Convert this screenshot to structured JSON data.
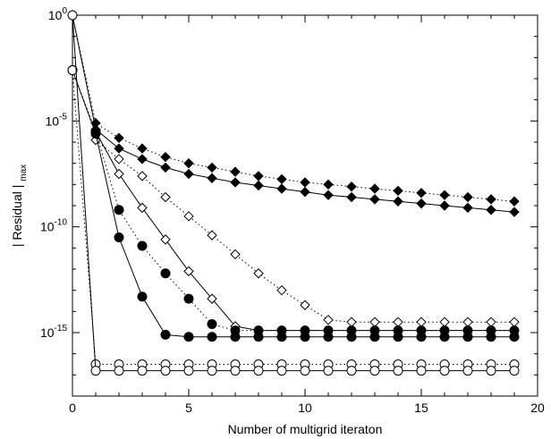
{
  "chart_data": {
    "type": "line",
    "title": "",
    "xlabel": "Number of multigrid iteraton",
    "ylabel": "| Residual |",
    "ylabel_sub": "max",
    "xlim": [
      0,
      20
    ],
    "ylim_log10": [
      -18,
      0
    ],
    "yscale": "log",
    "grid": false,
    "legend": "none",
    "x_ticks": [
      {
        "value": 0,
        "label": "0"
      },
      {
        "value": 5,
        "label": "5"
      },
      {
        "value": 10,
        "label": "10"
      },
      {
        "value": 15,
        "label": "15"
      },
      {
        "value": 20,
        "label": "20"
      }
    ],
    "y_ticks": [
      {
        "exp": 0,
        "base": "10",
        "sup": "0"
      },
      {
        "exp": -5,
        "base": "10",
        "sup": "-5"
      },
      {
        "exp": -10,
        "base": "10",
        "sup": "-10"
      },
      {
        "exp": -15,
        "base": "10",
        "sup": "-15"
      }
    ],
    "series": [
      {
        "marker": "diamond-filled",
        "line": "dotted",
        "x": [
          0,
          1,
          2,
          3,
          4,
          5,
          6,
          7,
          8,
          9,
          10,
          11,
          12,
          13,
          14,
          15,
          16,
          17,
          18,
          19
        ],
        "y_log10": [
          0,
          -5.1,
          -5.8,
          -6.3,
          -6.7,
          -7.0,
          -7.2,
          -7.4,
          -7.6,
          -7.75,
          -7.9,
          -8.0,
          -8.1,
          -8.2,
          -8.3,
          -8.4,
          -8.5,
          -8.6,
          -8.7,
          -8.8
        ]
      },
      {
        "marker": "diamond-filled",
        "line": "solid",
        "x": [
          0,
          1,
          2,
          3,
          4,
          5,
          6,
          7,
          8,
          9,
          10,
          11,
          12,
          13,
          14,
          15,
          16,
          17,
          18,
          19
        ],
        "y_log10": [
          0,
          -5.4,
          -6.3,
          -6.8,
          -7.2,
          -7.5,
          -7.7,
          -7.9,
          -8.05,
          -8.2,
          -8.35,
          -8.5,
          -8.6,
          -8.7,
          -8.8,
          -8.9,
          -9.0,
          -9.1,
          -9.2,
          -9.3
        ]
      },
      {
        "marker": "diamond-open",
        "line": "dotted",
        "x": [
          1,
          2,
          3,
          4,
          5,
          6,
          7,
          8,
          9,
          10,
          11,
          12,
          13,
          14,
          15,
          16,
          17,
          18,
          19
        ],
        "y_log10": [
          -5.9,
          -6.8,
          -7.6,
          -8.6,
          -9.5,
          -10.4,
          -11.3,
          -12.2,
          -13.0,
          -13.7,
          -14.4,
          -14.5,
          -14.5,
          -14.5,
          -14.5,
          -14.5,
          -14.5,
          -14.5,
          -14.5
        ]
      },
      {
        "marker": "diamond-open",
        "line": "solid",
        "x": [
          1,
          2,
          3,
          4,
          5,
          6,
          7,
          8,
          9,
          10,
          11,
          12,
          13,
          14,
          15,
          16,
          17,
          18,
          19
        ],
        "y_log10": [
          -5.5,
          -7.5,
          -9.1,
          -10.6,
          -12.1,
          -13.4,
          -14.7,
          -14.9,
          -14.9,
          -14.9,
          -14.9,
          -14.9,
          -14.9,
          -14.9,
          -14.9,
          -14.9,
          -14.9,
          -14.9,
          -14.9
        ]
      },
      {
        "marker": "circle-filled",
        "line": "dotted",
        "x": [
          0,
          1,
          2,
          3,
          4,
          5,
          6,
          7,
          8,
          9,
          10,
          11,
          12,
          13,
          14,
          15,
          16,
          17,
          18,
          19
        ],
        "y_log10": [
          -2.6,
          -5.5,
          -9.2,
          -10.9,
          -12.2,
          -13.4,
          -14.6,
          -14.9,
          -14.9,
          -14.9,
          -14.9,
          -14.9,
          -14.9,
          -14.9,
          -14.9,
          -14.9,
          -14.9,
          -14.9,
          -14.9,
          -14.9
        ]
      },
      {
        "marker": "circle-filled",
        "line": "solid",
        "x": [
          0,
          1,
          2,
          3,
          4,
          5,
          6,
          7,
          8,
          9,
          10,
          11,
          12,
          13,
          14,
          15,
          16,
          17,
          18,
          19
        ],
        "y_log10": [
          -2.6,
          -5.6,
          -10.5,
          -13.3,
          -15.1,
          -15.2,
          -15.2,
          -15.2,
          -15.2,
          -15.2,
          -15.2,
          -15.2,
          -15.2,
          -15.2,
          -15.2,
          -15.2,
          -15.2,
          -15.2,
          -15.2,
          -15.2
        ]
      },
      {
        "marker": "circle-open",
        "line": "dotted",
        "x": [
          0,
          1,
          2,
          3,
          4,
          5,
          6,
          7,
          8,
          9,
          10,
          11,
          12,
          13,
          14,
          15,
          16,
          17,
          18,
          19
        ],
        "y_log10": [
          -2.6,
          -16.5,
          -16.5,
          -16.5,
          -16.5,
          -16.5,
          -16.5,
          -16.5,
          -16.5,
          -16.5,
          -16.5,
          -16.5,
          -16.5,
          -16.5,
          -16.5,
          -16.5,
          -16.5,
          -16.5,
          -16.5,
          -16.5
        ]
      },
      {
        "marker": "circle-open",
        "line": "solid",
        "x": [
          0,
          1,
          2,
          3,
          4,
          5,
          6,
          7,
          8,
          9,
          10,
          11,
          12,
          13,
          14,
          15,
          16,
          17,
          18,
          19
        ],
        "y_log10": [
          0,
          -16.8,
          -16.8,
          -16.8,
          -16.8,
          -16.8,
          -16.8,
          -16.8,
          -16.8,
          -16.8,
          -16.8,
          -16.8,
          -16.8,
          -16.8,
          -16.8,
          -16.8,
          -16.8,
          -16.8,
          -16.8,
          -16.8
        ]
      }
    ]
  }
}
